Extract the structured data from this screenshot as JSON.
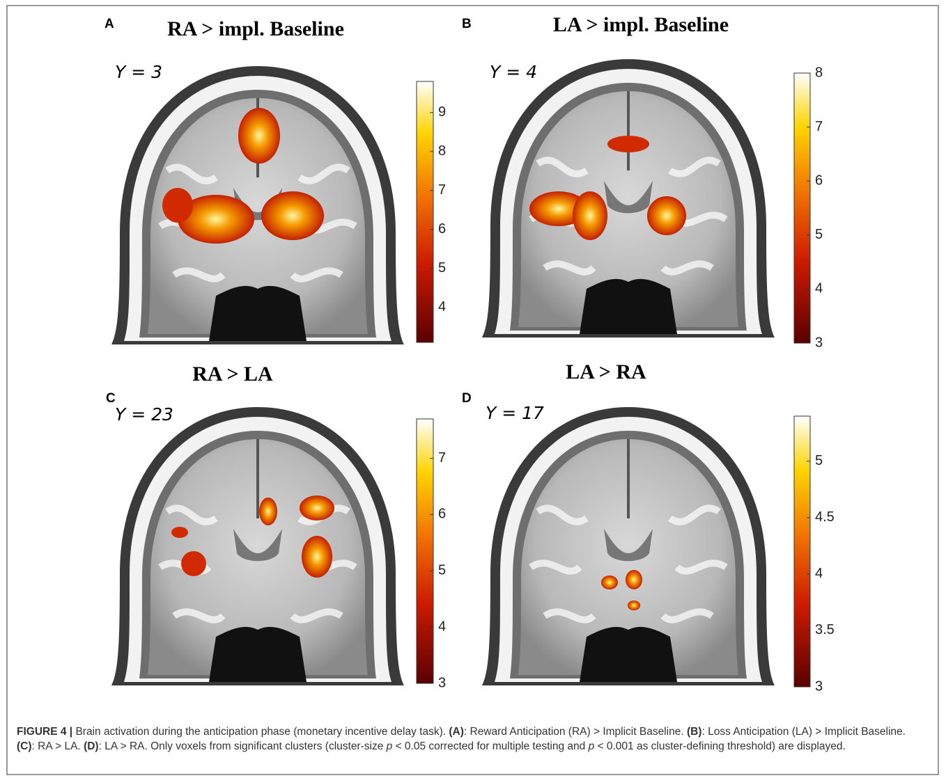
{
  "panels": [
    {
      "letter": "A",
      "title": "RA > impl. Baseline",
      "slice": "Y = 3",
      "colorbar": {
        "lim": [
          3.1,
          9.8
        ],
        "ticks": [
          4,
          5,
          6,
          7,
          8,
          9
        ]
      }
    },
    {
      "letter": "B",
      "title": "LA > impl. Baseline",
      "slice": "Y = 4",
      "colorbar": {
        "lim": [
          3,
          8
        ],
        "ticks": [
          3,
          4,
          5,
          6,
          7,
          8
        ]
      }
    },
    {
      "letter": "C",
      "title": "RA > LA",
      "slice": "Y = 23",
      "colorbar": {
        "lim": [
          3,
          7.7
        ],
        "ticks": [
          3,
          4,
          5,
          6,
          7
        ]
      }
    },
    {
      "letter": "D",
      "title": "LA > RA",
      "slice": "Y = 17",
      "colorbar": {
        "lim": [
          3,
          5.4
        ],
        "ticks": [
          3,
          3.5,
          4,
          4.5,
          5
        ]
      }
    }
  ],
  "caption": {
    "segments": [
      {
        "text": "FIGURE 4 |",
        "style": "bold"
      },
      {
        "text": " Brain activation during the anticipation phase (monetary incentive delay task). ",
        "style": "normal"
      },
      {
        "text": "(A)",
        "style": "bold"
      },
      {
        "text": ": Reward Anticipation (RA) > Implicit Baseline. ",
        "style": "normal"
      },
      {
        "text": "(B)",
        "style": "bold"
      },
      {
        "text": ": Loss Anticipation (LA) > Implicit Baseline. ",
        "style": "normal"
      },
      {
        "text": "(C)",
        "style": "bold"
      },
      {
        "text": ": RA > LA. ",
        "style": "normal"
      },
      {
        "text": "(D)",
        "style": "bold"
      },
      {
        "text": ": LA > RA. Only voxels from significant clusters (cluster-size ",
        "style": "normal"
      },
      {
        "text": "p",
        "style": "italic"
      },
      {
        "text": " < 0.05 corrected for multiple testing and ",
        "style": "normal"
      },
      {
        "text": "p",
        "style": "italic"
      },
      {
        "text": " < 0.001 as cluster-defining threshold) are displayed.",
        "style": "normal"
      }
    ]
  }
}
